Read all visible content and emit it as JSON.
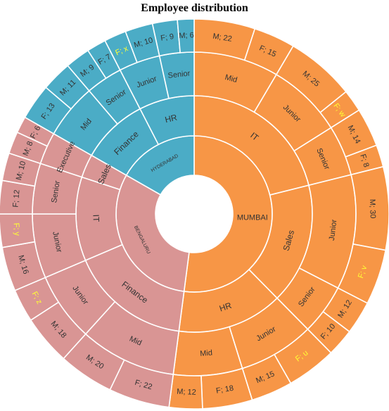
{
  "chart_data": {
    "type": "sunburst",
    "title": "Employee distribution",
    "colors": {
      "MUMBAI": "#f79646",
      "BENGALURU": "#d99594",
      "HYDERABAD": "#4bacc6",
      "border": "#ffffff",
      "label": "#333333",
      "label_placeholder": "#ffff33"
    },
    "hierarchy": [
      {
        "name": "MUMBAI",
        "children": [
          {
            "name": "IT",
            "children": [
              {
                "name": "Mid",
                "children": [
                  {
                    "label": "M; 22",
                    "value": 22
                  },
                  {
                    "label": "F; 15",
                    "value": 15
                  }
                ]
              },
              {
                "name": "Junior",
                "children": [
                  {
                    "label": "M; 25",
                    "value": 25
                  },
                  {
                    "label": "F; w",
                    "value": 8
                  }
                ]
              },
              {
                "name": "Senior",
                "children": [
                  {
                    "label": "M; 14",
                    "value": 14
                  },
                  {
                    "label": "F; 8",
                    "value": 8
                  }
                ]
              }
            ]
          },
          {
            "name": "Sales",
            "children": [
              {
                "name": "Junior",
                "children": [
                  {
                    "label": "M; 30",
                    "value": 30
                  },
                  {
                    "label": "F; v",
                    "value": 20
                  }
                ]
              },
              {
                "name": "Senior",
                "children": [
                  {
                    "label": "M; 12",
                    "value": 12
                  },
                  {
                    "label": "F; 10",
                    "value": 10
                  }
                ]
              }
            ]
          },
          {
            "name": "HR",
            "children": [
              {
                "name": "Junior",
                "children": [
                  {
                    "label": "F; u",
                    "value": 18
                  },
                  {
                    "label": "M; 15",
                    "value": 15
                  }
                ]
              },
              {
                "name": "Mid",
                "children": [
                  {
                    "label": "F; 18",
                    "value": 18
                  },
                  {
                    "label": "M; 12",
                    "value": 12
                  }
                ]
              }
            ]
          }
        ]
      },
      {
        "name": "BENGALURU",
        "children": [
          {
            "name": "Finance",
            "children": [
              {
                "name": "Mid",
                "children": [
                  {
                    "label": "F; 22",
                    "value": 22
                  },
                  {
                    "label": "M; 20",
                    "value": 20
                  }
                ]
              },
              {
                "name": "Junior",
                "children": [
                  {
                    "label": "M; 18",
                    "value": 18
                  },
                  {
                    "label": "F; z",
                    "value": 12
                  }
                ]
              }
            ]
          },
          {
            "name": "IT",
            "children": [
              {
                "name": "Junior",
                "children": [
                  {
                    "label": "M; 16",
                    "value": 16
                  },
                  {
                    "label": "F; y",
                    "value": 12
                  }
                ]
              },
              {
                "name": "Senior",
                "children": [
                  {
                    "label": "F; 12",
                    "value": 12
                  },
                  {
                    "label": "M; 10",
                    "value": 10
                  }
                ]
              }
            ]
          },
          {
            "name": "Sales",
            "children": [
              {
                "name": "Executive",
                "children": [
                  {
                    "label": "M; 8",
                    "value": 8
                  },
                  {
                    "label": "F; 6",
                    "value": 6
                  }
                ]
              }
            ]
          }
        ]
      },
      {
        "name": "HYDERABAD",
        "children": [
          {
            "name": "Finance",
            "children": [
              {
                "name": "Mid",
                "children": [
                  {
                    "label": "F; 13",
                    "value": 13
                  },
                  {
                    "label": "M; 11",
                    "value": 11
                  }
                ]
              },
              {
                "name": "Senior",
                "children": [
                  {
                    "label": "M; 9",
                    "value": 9
                  },
                  {
                    "label": "F; 7",
                    "value": 7
                  }
                ]
              }
            ]
          },
          {
            "name": "HR",
            "children": [
              {
                "name": "Junior",
                "children": [
                  {
                    "label": "F; x",
                    "value": 8
                  },
                  {
                    "label": "M; 10",
                    "value": 10
                  }
                ]
              },
              {
                "name": "Senior",
                "children": [
                  {
                    "label": "F; 9",
                    "value": 9
                  },
                  {
                    "label": "M; 6",
                    "value": 6
                  }
                ]
              }
            ]
          }
        ]
      }
    ]
  }
}
